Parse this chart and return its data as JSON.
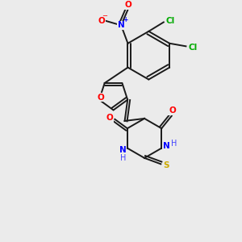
{
  "background_color": "#ebebeb",
  "bond_color": "#1a1a1a",
  "colors": {
    "N": "#0000ff",
    "O": "#ff0000",
    "S": "#ccaa00",
    "Cl": "#00aa00",
    "C": "#1a1a1a",
    "H": "#4444ff"
  },
  "lw": 1.4,
  "fontsize": 7.5
}
